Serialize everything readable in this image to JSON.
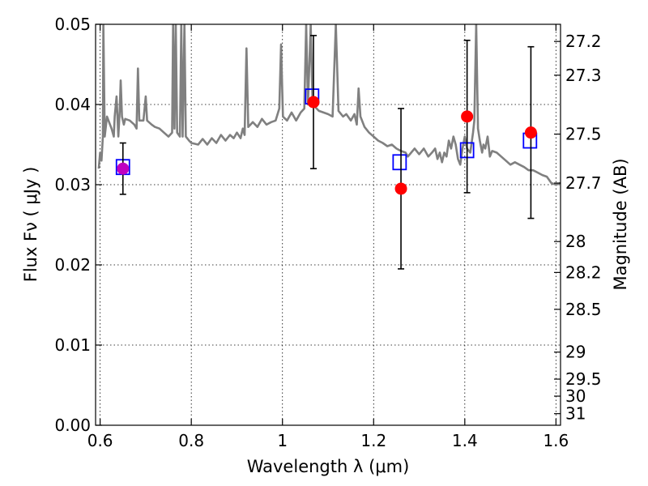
{
  "chart_data": {
    "type": "scatter",
    "title": "",
    "xlabel": "Wavelength  λ (μm)",
    "ylabel": "Flux  Fν ( μJy )",
    "y2label": "Magnitude (AB)",
    "xlim": [
      0.59,
      1.61
    ],
    "ylim": [
      0.0,
      0.05
    ],
    "grid": true,
    "x_ticks": [
      {
        "value": 0.6,
        "label": "0.6"
      },
      {
        "value": 0.8,
        "label": "0.8"
      },
      {
        "value": 1.0,
        "label": "1"
      },
      {
        "value": 1.2,
        "label": "1.2"
      },
      {
        "value": 1.4,
        "label": "1.4"
      },
      {
        "value": 1.6,
        "label": "1.6"
      }
    ],
    "y_ticks": [
      {
        "value": 0.0,
        "label": "0.00"
      },
      {
        "value": 0.01,
        "label": "0.01"
      },
      {
        "value": 0.02,
        "label": "0.02"
      },
      {
        "value": 0.03,
        "label": "0.03"
      },
      {
        "value": 0.04,
        "label": "0.04"
      },
      {
        "value": 0.05,
        "label": "0.05"
      }
    ],
    "y2_ticks": [
      {
        "value": 27.2,
        "label": "27.2"
      },
      {
        "value": 27.3,
        "label": "27.3"
      },
      {
        "value": 27.5,
        "label": "27.5"
      },
      {
        "value": 27.7,
        "label": "27.7"
      },
      {
        "value": 28.0,
        "label": "28"
      },
      {
        "value": 28.2,
        "label": "28.2"
      },
      {
        "value": 28.5,
        "label": "28.5"
      },
      {
        "value": 29.0,
        "label": "29"
      },
      {
        "value": 29.5,
        "label": "29.5"
      },
      {
        "value": 30.0,
        "label": "30"
      },
      {
        "value": 31.0,
        "label": "31"
      }
    ],
    "model_spectrum": {
      "color": "#808080",
      "points": [
        [
          0.597,
          0.032
        ],
        [
          0.6,
          0.034
        ],
        [
          0.603,
          0.033
        ],
        [
          0.606,
          0.036
        ],
        [
          0.607,
          0.05
        ],
        [
          0.61,
          0.036
        ],
        [
          0.615,
          0.0385
        ],
        [
          0.625,
          0.037
        ],
        [
          0.63,
          0.036
        ],
        [
          0.632,
          0.0385
        ],
        [
          0.636,
          0.041
        ],
        [
          0.64,
          0.036
        ],
        [
          0.643,
          0.0392
        ],
        [
          0.645,
          0.043
        ],
        [
          0.648,
          0.0385
        ],
        [
          0.652,
          0.0375
        ],
        [
          0.655,
          0.0382
        ],
        [
          0.665,
          0.038
        ],
        [
          0.675,
          0.0375
        ],
        [
          0.68,
          0.037
        ],
        [
          0.683,
          0.0445
        ],
        [
          0.686,
          0.038
        ],
        [
          0.695,
          0.038
        ],
        [
          0.7,
          0.041
        ],
        [
          0.703,
          0.038
        ],
        [
          0.713,
          0.0375
        ],
        [
          0.72,
          0.0372
        ],
        [
          0.73,
          0.037
        ],
        [
          0.74,
          0.0365
        ],
        [
          0.75,
          0.036
        ],
        [
          0.758,
          0.0365
        ],
        [
          0.76,
          0.05
        ],
        [
          0.763,
          0.037
        ],
        [
          0.766,
          0.05
        ],
        [
          0.769,
          0.0365
        ],
        [
          0.775,
          0.036
        ],
        [
          0.778,
          0.05
        ],
        [
          0.781,
          0.036
        ],
        [
          0.785,
          0.05
        ],
        [
          0.788,
          0.036
        ],
        [
          0.795,
          0.0355
        ],
        [
          0.8,
          0.0352
        ],
        [
          0.815,
          0.035
        ],
        [
          0.825,
          0.0357
        ],
        [
          0.835,
          0.035
        ],
        [
          0.845,
          0.0358
        ],
        [
          0.855,
          0.0352
        ],
        [
          0.865,
          0.0362
        ],
        [
          0.875,
          0.0355
        ],
        [
          0.885,
          0.0362
        ],
        [
          0.893,
          0.0358
        ],
        [
          0.9,
          0.0365
        ],
        [
          0.908,
          0.0358
        ],
        [
          0.913,
          0.037
        ],
        [
          0.917,
          0.0362
        ],
        [
          0.921,
          0.047
        ],
        [
          0.925,
          0.0372
        ],
        [
          0.935,
          0.0378
        ],
        [
          0.945,
          0.0372
        ],
        [
          0.955,
          0.0382
        ],
        [
          0.965,
          0.0375
        ],
        [
          0.975,
          0.0378
        ],
        [
          0.985,
          0.038
        ],
        [
          0.993,
          0.0395
        ],
        [
          0.997,
          0.0475
        ],
        [
          1.001,
          0.0385
        ],
        [
          1.01,
          0.038
        ],
        [
          1.02,
          0.039
        ],
        [
          1.03,
          0.038
        ],
        [
          1.04,
          0.039
        ],
        [
          1.048,
          0.0395
        ],
        [
          1.052,
          0.05
        ],
        [
          1.056,
          0.04
        ],
        [
          1.062,
          0.05
        ],
        [
          1.066,
          0.04
        ],
        [
          1.075,
          0.0395
        ],
        [
          1.08,
          0.0392
        ],
        [
          1.09,
          0.039
        ],
        [
          1.1,
          0.0388
        ],
        [
          1.11,
          0.0385
        ],
        [
          1.117,
          0.05
        ],
        [
          1.123,
          0.0392
        ],
        [
          1.133,
          0.0385
        ],
        [
          1.14,
          0.0388
        ],
        [
          1.15,
          0.038
        ],
        [
          1.158,
          0.0388
        ],
        [
          1.163,
          0.0375
        ],
        [
          1.167,
          0.042
        ],
        [
          1.171,
          0.0385
        ],
        [
          1.18,
          0.0372
        ],
        [
          1.19,
          0.0365
        ],
        [
          1.2,
          0.036
        ],
        [
          1.21,
          0.0355
        ],
        [
          1.22,
          0.0352
        ],
        [
          1.23,
          0.0348
        ],
        [
          1.24,
          0.035
        ],
        [
          1.25,
          0.0345
        ],
        [
          1.26,
          0.0342
        ],
        [
          1.27,
          0.034
        ],
        [
          1.275,
          0.0335
        ],
        [
          1.29,
          0.0345
        ],
        [
          1.3,
          0.0338
        ],
        [
          1.31,
          0.0345
        ],
        [
          1.32,
          0.0335
        ],
        [
          1.328,
          0.034
        ],
        [
          1.335,
          0.0345
        ],
        [
          1.34,
          0.0332
        ],
        [
          1.345,
          0.034
        ],
        [
          1.35,
          0.0328
        ],
        [
          1.355,
          0.034
        ],
        [
          1.36,
          0.0335
        ],
        [
          1.365,
          0.0355
        ],
        [
          1.37,
          0.0345
        ],
        [
          1.375,
          0.036
        ],
        [
          1.38,
          0.035
        ],
        [
          1.385,
          0.0332
        ],
        [
          1.39,
          0.0325
        ],
        [
          1.395,
          0.0345
        ],
        [
          1.4,
          0.036
        ],
        [
          1.405,
          0.0345
        ],
        [
          1.412,
          0.034
        ],
        [
          1.418,
          0.0365
        ],
        [
          1.421,
          0.038
        ],
        [
          1.425,
          0.05
        ],
        [
          1.429,
          0.037
        ],
        [
          1.433,
          0.0355
        ],
        [
          1.438,
          0.034
        ],
        [
          1.441,
          0.035
        ],
        [
          1.445,
          0.0345
        ],
        [
          1.45,
          0.036
        ],
        [
          1.455,
          0.0335
        ],
        [
          1.46,
          0.0342
        ],
        [
          1.47,
          0.034
        ],
        [
          1.48,
          0.0335
        ],
        [
          1.49,
          0.033
        ],
        [
          1.5,
          0.0325
        ],
        [
          1.51,
          0.0328
        ],
        [
          1.52,
          0.0325
        ],
        [
          1.53,
          0.0322
        ],
        [
          1.54,
          0.0318
        ],
        [
          1.55,
          0.0318
        ],
        [
          1.56,
          0.0315
        ],
        [
          1.57,
          0.0312
        ],
        [
          1.58,
          0.031
        ],
        [
          1.59,
          0.0302
        ],
        [
          1.6,
          0.03
        ],
        [
          1.61,
          0.0302
        ]
      ]
    },
    "model_photometry": {
      "color": "#0000ff",
      "points": [
        {
          "x": 0.65,
          "y": 0.0322
        },
        {
          "x": 1.065,
          "y": 0.041
        },
        {
          "x": 1.257,
          "y": 0.0328
        },
        {
          "x": 1.405,
          "y": 0.0343
        },
        {
          "x": 1.543,
          "y": 0.0355
        }
      ]
    },
    "observed": {
      "color": "#ff0000",
      "first_point_color": "#c000c0",
      "points": [
        {
          "x": 0.65,
          "y": 0.032,
          "err": 0.0032
        },
        {
          "x": 1.068,
          "y": 0.0403,
          "err": 0.0083
        },
        {
          "x": 1.26,
          "y": 0.0295,
          "err": 0.01
        },
        {
          "x": 1.405,
          "y": 0.0385,
          "err": 0.0095
        },
        {
          "x": 1.545,
          "y": 0.0365,
          "err": 0.0107
        }
      ]
    }
  }
}
